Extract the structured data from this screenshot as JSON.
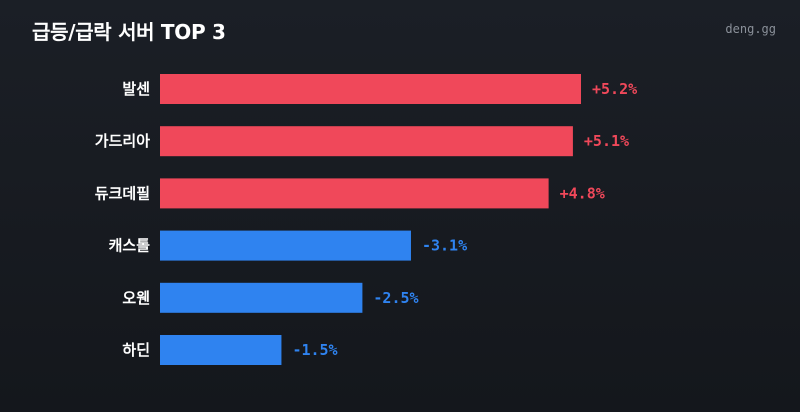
{
  "header": {
    "title": "급등/급락 서버 TOP 3",
    "source": "deng.gg"
  },
  "colors": {
    "positive": "#f0485a",
    "negative": "#2f83f0"
  },
  "chart_data": {
    "type": "bar",
    "orientation": "horizontal",
    "title": "급등/급락 서버 TOP 3",
    "categories": [
      "발센",
      "가드리아",
      "듀크데필",
      "캐스톨",
      "오웬",
      "하딘"
    ],
    "values": [
      5.2,
      5.1,
      4.8,
      -3.1,
      -2.5,
      -1.5
    ],
    "value_labels": [
      "+5.2%",
      "+5.1%",
      "+4.8%",
      "-3.1%",
      "-2.5%",
      "-1.5%"
    ],
    "unit": "%",
    "grid": false,
    "legend": "none"
  }
}
